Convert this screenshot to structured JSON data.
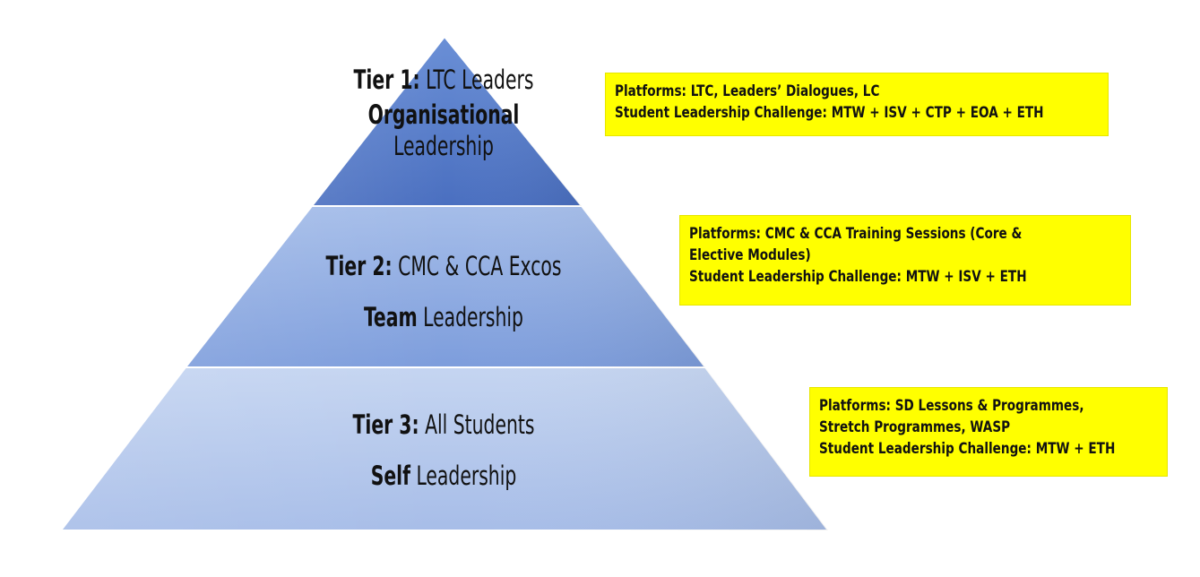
{
  "tiers": [
    {
      "label": "Tier 1:",
      "group": "LTC Leaders",
      "leadership_bold": "Organisational",
      "leadership_rest": "Leadership",
      "color_top": "#6a8fd6",
      "color_bottom": "#4a6fc0"
    },
    {
      "label": "Tier 2:",
      "group": "CMC & CCA Excos",
      "leadership_bold": "Team",
      "leadership_rest": "Leadership",
      "color_top": "#a5bde9",
      "color_bottom": "#7d9ddc"
    },
    {
      "label": "Tier 3:",
      "group": "All Students",
      "leadership_bold": "Self",
      "leadership_rest": "Leadership",
      "color_top": "#c5d5f1",
      "color_bottom": "#a7bde8"
    }
  ],
  "callouts": [
    {
      "lines": [
        "Platforms: LTC, Leaders’ Dialogues, LC",
        "Student Leadership Challenge: MTW + ISV + CTP + EOA + ETH"
      ]
    },
    {
      "lines": [
        "Platforms: CMC & CCA Training Sessions (Core &",
        "Elective Modules)",
        "Student Leadership Challenge: MTW + ISV + ETH"
      ]
    },
    {
      "lines": [
        "Platforms: SD Lessons & Programmes,",
        "Stretch Programmes, WASP",
        "Student Leadership Challenge: MTW + ETH"
      ]
    }
  ],
  "colors": {
    "callout_background": "#ffff00",
    "outline": "#ffffff"
  }
}
